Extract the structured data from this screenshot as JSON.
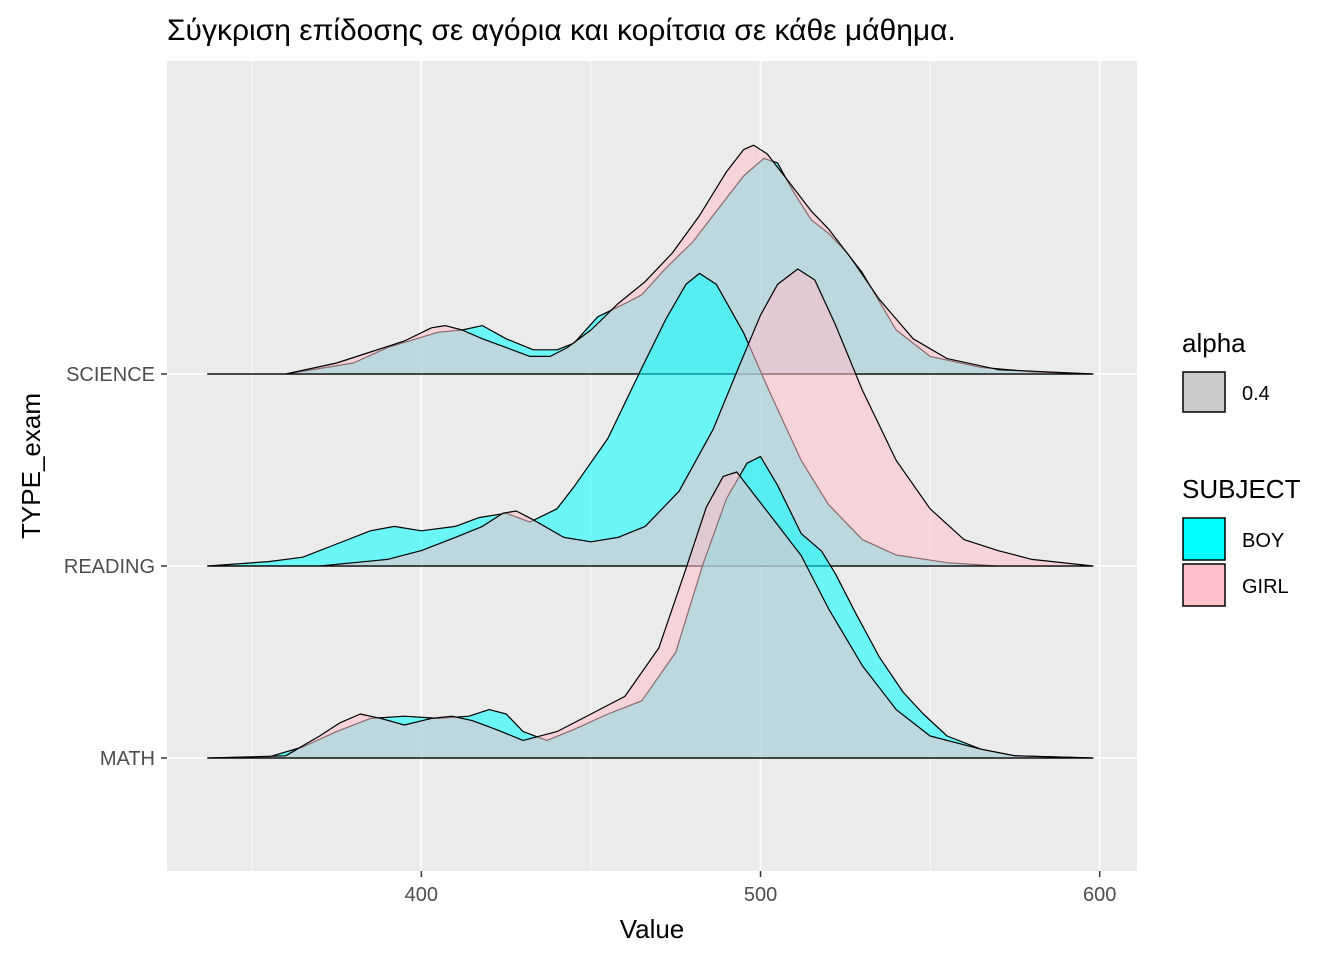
{
  "chart_data": {
    "type": "ridgeline-density",
    "title": "Σύγκριση επίδοσης σε αγόρια και κορίτσια σε κάθε μάθημα.",
    "xlabel": "Value",
    "ylabel": "TYPE_exam",
    "xlim": [
      325,
      611
    ],
    "x_ticks": [
      400,
      500,
      600
    ],
    "x_tick_labels": [
      "400",
      "500",
      "600"
    ],
    "categories": [
      "SCIENCE",
      "READING",
      "MATH"
    ],
    "grid": true,
    "legend_position": "right",
    "legends": [
      {
        "title": "alpha",
        "entries": [
          {
            "label": "0.4",
            "color": "#bdbdbd"
          }
        ]
      },
      {
        "title": "SUBJECT",
        "entries": [
          {
            "label": "BOY",
            "color": "#00FFFF"
          },
          {
            "label": "GIRL",
            "color": "#FFC0CB"
          }
        ]
      }
    ],
    "fill_opacity": 0.55,
    "series": [
      {
        "name": "BOY",
        "category": "SCIENCE",
        "color": "#00FFFF",
        "points": [
          [
            337,
            0
          ],
          [
            360,
            0
          ],
          [
            380,
            0.05
          ],
          [
            390,
            0.12
          ],
          [
            405,
            0.19
          ],
          [
            412,
            0.2
          ],
          [
            418,
            0.22
          ],
          [
            425,
            0.16
          ],
          [
            433,
            0.11
          ],
          [
            440,
            0.11
          ],
          [
            445,
            0.14
          ],
          [
            452,
            0.26
          ],
          [
            460,
            0.32
          ],
          [
            465,
            0.36
          ],
          [
            472,
            0.48
          ],
          [
            480,
            0.6
          ],
          [
            488,
            0.76
          ],
          [
            495,
            0.9
          ],
          [
            501,
            0.98
          ],
          [
            505,
            0.96
          ],
          [
            510,
            0.82
          ],
          [
            515,
            0.7
          ],
          [
            520,
            0.64
          ],
          [
            525,
            0.56
          ],
          [
            530,
            0.46
          ],
          [
            535,
            0.33
          ],
          [
            540,
            0.2
          ],
          [
            550,
            0.08
          ],
          [
            565,
            0.03
          ],
          [
            580,
            0.01
          ],
          [
            598,
            0
          ]
        ]
      },
      {
        "name": "GIRL",
        "category": "SCIENCE",
        "color": "#FFC0CB",
        "points": [
          [
            337,
            0
          ],
          [
            360,
            0
          ],
          [
            375,
            0.05
          ],
          [
            385,
            0.1
          ],
          [
            395,
            0.15
          ],
          [
            403,
            0.21
          ],
          [
            407,
            0.22
          ],
          [
            412,
            0.2
          ],
          [
            418,
            0.16
          ],
          [
            425,
            0.12
          ],
          [
            432,
            0.08
          ],
          [
            438,
            0.08
          ],
          [
            443,
            0.12
          ],
          [
            450,
            0.2
          ],
          [
            458,
            0.32
          ],
          [
            466,
            0.42
          ],
          [
            474,
            0.55
          ],
          [
            482,
            0.72
          ],
          [
            490,
            0.92
          ],
          [
            495,
            1.02
          ],
          [
            498,
            1.04
          ],
          [
            502,
            1.0
          ],
          [
            508,
            0.88
          ],
          [
            515,
            0.74
          ],
          [
            520,
            0.66
          ],
          [
            527,
            0.52
          ],
          [
            535,
            0.34
          ],
          [
            545,
            0.16
          ],
          [
            555,
            0.07
          ],
          [
            570,
            0.02
          ],
          [
            598,
            0
          ]
        ]
      },
      {
        "name": "BOY",
        "category": "READING",
        "color": "#00FFFF",
        "points": [
          [
            337,
            0
          ],
          [
            355,
            0.02
          ],
          [
            365,
            0.04
          ],
          [
            375,
            0.1
          ],
          [
            385,
            0.16
          ],
          [
            392,
            0.18
          ],
          [
            400,
            0.16
          ],
          [
            410,
            0.18
          ],
          [
            417,
            0.22
          ],
          [
            425,
            0.24
          ],
          [
            432,
            0.2
          ],
          [
            440,
            0.26
          ],
          [
            445,
            0.36
          ],
          [
            455,
            0.58
          ],
          [
            465,
            0.9
          ],
          [
            472,
            1.12
          ],
          [
            478,
            1.28
          ],
          [
            482,
            1.33
          ],
          [
            487,
            1.28
          ],
          [
            495,
            1.06
          ],
          [
            503,
            0.78
          ],
          [
            512,
            0.48
          ],
          [
            520,
            0.28
          ],
          [
            530,
            0.12
          ],
          [
            540,
            0.05
          ],
          [
            555,
            0.015
          ],
          [
            570,
            0
          ],
          [
            598,
            0
          ]
        ]
      },
      {
        "name": "GIRL",
        "category": "READING",
        "color": "#FFC0CB",
        "points": [
          [
            337,
            0
          ],
          [
            370,
            0
          ],
          [
            390,
            0.03
          ],
          [
            400,
            0.07
          ],
          [
            410,
            0.13
          ],
          [
            418,
            0.18
          ],
          [
            424,
            0.24
          ],
          [
            428,
            0.25
          ],
          [
            433,
            0.21
          ],
          [
            442,
            0.13
          ],
          [
            450,
            0.11
          ],
          [
            458,
            0.13
          ],
          [
            466,
            0.18
          ],
          [
            476,
            0.34
          ],
          [
            486,
            0.62
          ],
          [
            494,
            0.92
          ],
          [
            500,
            1.14
          ],
          [
            505,
            1.28
          ],
          [
            511,
            1.35
          ],
          [
            516,
            1.3
          ],
          [
            522,
            1.1
          ],
          [
            530,
            0.8
          ],
          [
            540,
            0.48
          ],
          [
            550,
            0.26
          ],
          [
            560,
            0.12
          ],
          [
            570,
            0.07
          ],
          [
            580,
            0.03
          ],
          [
            598,
            0
          ]
        ]
      },
      {
        "name": "BOY",
        "category": "MATH",
        "color": "#00FFFF",
        "points": [
          [
            337,
            0
          ],
          [
            355,
            0.005
          ],
          [
            365,
            0.05
          ],
          [
            375,
            0.12
          ],
          [
            385,
            0.18
          ],
          [
            395,
            0.19
          ],
          [
            405,
            0.18
          ],
          [
            414,
            0.19
          ],
          [
            420,
            0.22
          ],
          [
            425,
            0.2
          ],
          [
            430,
            0.12
          ],
          [
            437,
            0.08
          ],
          [
            445,
            0.13
          ],
          [
            455,
            0.2
          ],
          [
            465,
            0.26
          ],
          [
            475,
            0.48
          ],
          [
            483,
            0.88
          ],
          [
            490,
            1.18
          ],
          [
            496,
            1.34
          ],
          [
            500,
            1.37
          ],
          [
            505,
            1.24
          ],
          [
            512,
            1.02
          ],
          [
            518,
            0.94
          ],
          [
            522,
            0.84
          ],
          [
            528,
            0.66
          ],
          [
            535,
            0.46
          ],
          [
            542,
            0.3
          ],
          [
            548,
            0.2
          ],
          [
            555,
            0.1
          ],
          [
            565,
            0.04
          ],
          [
            575,
            0.01
          ],
          [
            598,
            0
          ]
        ]
      },
      {
        "name": "GIRL",
        "category": "MATH",
        "color": "#FFC0CB",
        "points": [
          [
            337,
            0
          ],
          [
            360,
            0.01
          ],
          [
            370,
            0.1
          ],
          [
            376,
            0.16
          ],
          [
            382,
            0.2
          ],
          [
            388,
            0.18
          ],
          [
            395,
            0.15
          ],
          [
            403,
            0.18
          ],
          [
            409,
            0.19
          ],
          [
            415,
            0.17
          ],
          [
            422,
            0.13
          ],
          [
            430,
            0.08
          ],
          [
            440,
            0.12
          ],
          [
            450,
            0.2
          ],
          [
            460,
            0.28
          ],
          [
            470,
            0.5
          ],
          [
            478,
            0.86
          ],
          [
            484,
            1.14
          ],
          [
            489,
            1.28
          ],
          [
            493,
            1.3
          ],
          [
            498,
            1.2
          ],
          [
            505,
            1.06
          ],
          [
            512,
            0.92
          ],
          [
            520,
            0.68
          ],
          [
            530,
            0.42
          ],
          [
            540,
            0.22
          ],
          [
            550,
            0.1
          ],
          [
            565,
            0.04
          ],
          [
            575,
            0.01
          ],
          [
            598,
            0
          ]
        ]
      }
    ]
  }
}
